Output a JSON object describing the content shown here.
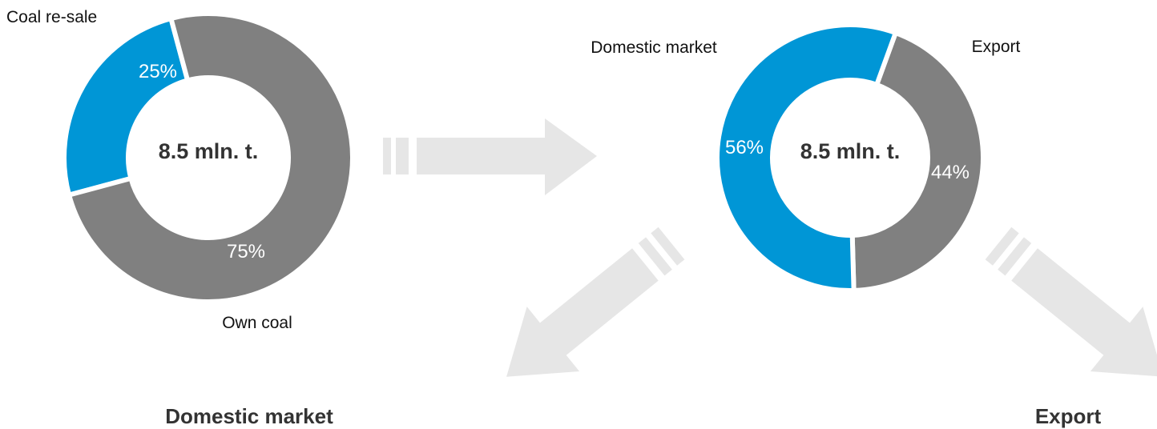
{
  "chart_data": [
    {
      "type": "donut",
      "center_label": "8.5 mln. t.",
      "slices": [
        {
          "name": "Coal re-sale",
          "value": 25,
          "label": "25%",
          "color": "#0096d6"
        },
        {
          "name": "Own coal",
          "value": 75,
          "label": "75%",
          "color": "#808080"
        }
      ]
    },
    {
      "type": "donut",
      "center_label": "8.5 mln. t.",
      "slices": [
        {
          "name": "Export",
          "value": 44,
          "label": "44%",
          "color": "#808080"
        },
        {
          "name": "Domestic market",
          "value": 56,
          "label": "56%",
          "color": "#0096d6"
        }
      ]
    }
  ],
  "flow": {
    "domestic_label": "Domestic market",
    "export_label": "Export"
  },
  "colors": {
    "blue": "#0096d6",
    "gray": "#808080",
    "arrow": "#e6e6e6"
  }
}
